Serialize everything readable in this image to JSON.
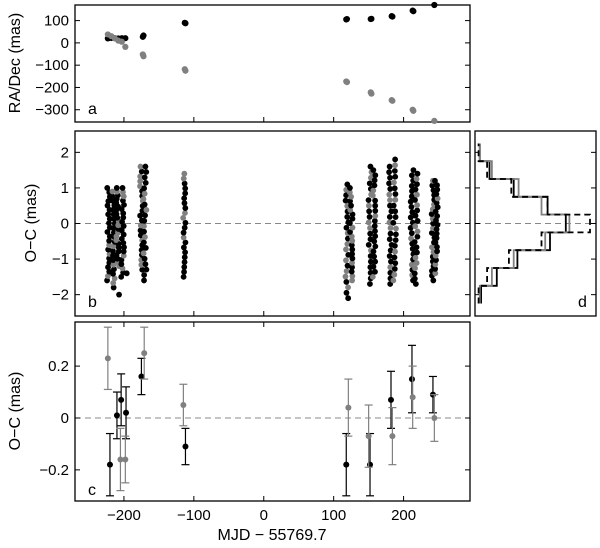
{
  "chart_data": [
    {
      "panel_letter": "a",
      "type": "scatter",
      "ylabel": "RA/Dec (mas)",
      "yticks": [
        -300,
        -200,
        -100,
        0,
        100
      ],
      "ylim": [
        -355,
        170
      ],
      "xlim": [
        -270,
        295
      ],
      "series": [
        {
          "color": "#000000",
          "points": [
            [
              -223,
              20
            ],
            [
              -218,
              22
            ],
            [
              -213,
              21
            ],
            [
              -208,
              20
            ],
            [
              -203,
              21
            ],
            [
              -198,
              21
            ],
            [
              -173,
              27
            ],
            [
              -172,
              33
            ],
            [
              -113,
              90
            ],
            [
              -112,
              88
            ],
            [
              118,
              105
            ],
            [
              119,
              107
            ],
            [
              153,
              107
            ],
            [
              154,
              108
            ],
            [
              183,
              120
            ],
            [
              184,
              118
            ],
            [
              213,
              145
            ],
            [
              214,
              142
            ],
            [
              244,
              170
            ]
          ]
        },
        {
          "color": "#808080",
          "points": [
            [
              -223,
              38
            ],
            [
              -218,
              30
            ],
            [
              -213,
              20
            ],
            [
              -208,
              10
            ],
            [
              -203,
              5
            ],
            [
              -198,
              -18
            ],
            [
              -173,
              -52
            ],
            [
              -172,
              -60
            ],
            [
              -113,
              -118
            ],
            [
              -112,
              -125
            ],
            [
              118,
              -173
            ],
            [
              119,
              -176
            ],
            [
              153,
              -222
            ],
            [
              154,
              -228
            ],
            [
              183,
              -257
            ],
            [
              184,
              -260
            ],
            [
              213,
              -300
            ],
            [
              214,
              -305
            ],
            [
              244,
              -350
            ]
          ]
        }
      ],
      "grid": false,
      "legend": "none"
    },
    {
      "panel_letter": "b",
      "type": "scatter",
      "ylabel": "O−C (mas)",
      "yticks": [
        -2,
        -1,
        0,
        1,
        2
      ],
      "ylim": [
        -2.6,
        2.6
      ],
      "xlim": [
        -270,
        295
      ],
      "zero_line": true,
      "epochs": [
        {
          "x": -222,
          "ymin": -1.6,
          "ymax": 1.0
        },
        {
          "x": -215,
          "ymin": -1.8,
          "ymax": 0.9
        },
        {
          "x": -209,
          "ymin": -1.2,
          "ymax": 1.0
        },
        {
          "x": -202,
          "ymin": -1.5,
          "ymax": 1.0
        },
        {
          "x": -175,
          "ymin": -1.3,
          "ymax": 1.6
        },
        {
          "x": -170,
          "ymin": -1.6,
          "ymax": 1.6
        },
        {
          "x": -114,
          "ymin": -1.5,
          "ymax": 1.4
        },
        {
          "x": 119,
          "ymin": -2.1,
          "ymax": 1.1
        },
        {
          "x": 125,
          "ymin": -1.6,
          "ymax": 1.0
        },
        {
          "x": 152,
          "ymin": -1.7,
          "ymax": 1.6
        },
        {
          "x": 158,
          "ymin": -1.5,
          "ymax": 1.5
        },
        {
          "x": 181,
          "ymin": -1.7,
          "ymax": 1.6
        },
        {
          "x": 187,
          "ymin": -1.6,
          "ymax": 1.8
        },
        {
          "x": 212,
          "ymin": -1.6,
          "ymax": 1.5
        },
        {
          "x": 218,
          "ymin": -1.7,
          "ymax": 1.4
        },
        {
          "x": 242,
          "ymin": -1.6,
          "ymax": 1.2
        },
        {
          "x": 247,
          "ymin": -1.4,
          "ymax": 1.2
        }
      ],
      "outliers": [
        [
          -207,
          -2.0
        ],
        [
          -196,
          -1.4
        ]
      ],
      "grid": false,
      "legend": "none"
    },
    {
      "panel_letter": "c",
      "type": "scatter",
      "xlabel": "MJD − 55769.7",
      "ylabel": "O−C (mas)",
      "xticks": [
        -200,
        -100,
        0,
        100,
        200
      ],
      "yticks": [
        -0.2,
        0,
        0.2
      ],
      "ylim": [
        -0.32,
        0.37
      ],
      "xlim": [
        -270,
        295
      ],
      "zero_line": true,
      "series": [
        {
          "color": "#000000",
          "points": [
            {
              "x": -220,
              "y": -0.18,
              "err": 0.12
            },
            {
              "x": -210,
              "y": 0.01,
              "err": 0.09
            },
            {
              "x": -204,
              "y": 0.07,
              "err": 0.1
            },
            {
              "x": -197,
              "y": 0.02,
              "err": 0.1
            },
            {
              "x": -175,
              "y": 0.16,
              "err": 0.07
            },
            {
              "x": -112,
              "y": -0.11,
              "err": 0.07
            },
            {
              "x": 118,
              "y": -0.18,
              "err": 0.12
            },
            {
              "x": 152,
              "y": -0.18,
              "err": 0.12
            },
            {
              "x": 182,
              "y": 0.07,
              "err": 0.11
            },
            {
              "x": 212,
              "y": 0.15,
              "err": 0.13
            },
            {
              "x": 242,
              "y": 0.09,
              "err": 0.07
            }
          ]
        },
        {
          "color": "#808080",
          "points": [
            {
              "x": -223,
              "y": 0.23,
              "err": 0.12
            },
            {
              "x": -205,
              "y": -0.16,
              "err": 0.12
            },
            {
              "x": -198,
              "y": -0.16,
              "err": 0.09
            },
            {
              "x": -171,
              "y": 0.25,
              "err": 0.1
            },
            {
              "x": -115,
              "y": 0.05,
              "err": 0.08
            },
            {
              "x": 121,
              "y": 0.04,
              "err": 0.11
            },
            {
              "x": 150,
              "y": -0.07,
              "err": 0.12
            },
            {
              "x": 184,
              "y": -0.07,
              "err": 0.11
            },
            {
              "x": 213,
              "y": 0.08,
              "err": 0.12
            },
            {
              "x": 244,
              "y": 0.0,
              "err": 0.09
            }
          ]
        }
      ],
      "grid": false,
      "legend": "none"
    },
    {
      "panel_letter": "d",
      "type": "histogram",
      "orientation": "horizontal",
      "ylim": [
        -2.6,
        2.6
      ],
      "xlim": [
        0,
        1
      ],
      "bin_edges": [
        -2.25,
        -1.75,
        -1.25,
        -0.75,
        -0.25,
        0.25,
        0.75,
        1.25,
        1.75,
        2.25
      ],
      "series": [
        {
          "color": "#000000",
          "style": "solid",
          "counts": [
            0.05,
            0.18,
            0.35,
            0.62,
            0.75,
            0.6,
            0.32,
            0.12,
            0.04
          ]
        },
        {
          "color": "#808080",
          "style": "solid",
          "counts": [
            0.04,
            0.14,
            0.32,
            0.58,
            0.78,
            0.55,
            0.36,
            0.14,
            0.04
          ]
        },
        {
          "color": "#000000",
          "style": "dashed",
          "counts": [
            0.03,
            0.1,
            0.28,
            0.55,
            0.95,
            0.6,
            0.3,
            0.1,
            0.03
          ]
        }
      ],
      "grid": false,
      "legend": "none"
    }
  ]
}
